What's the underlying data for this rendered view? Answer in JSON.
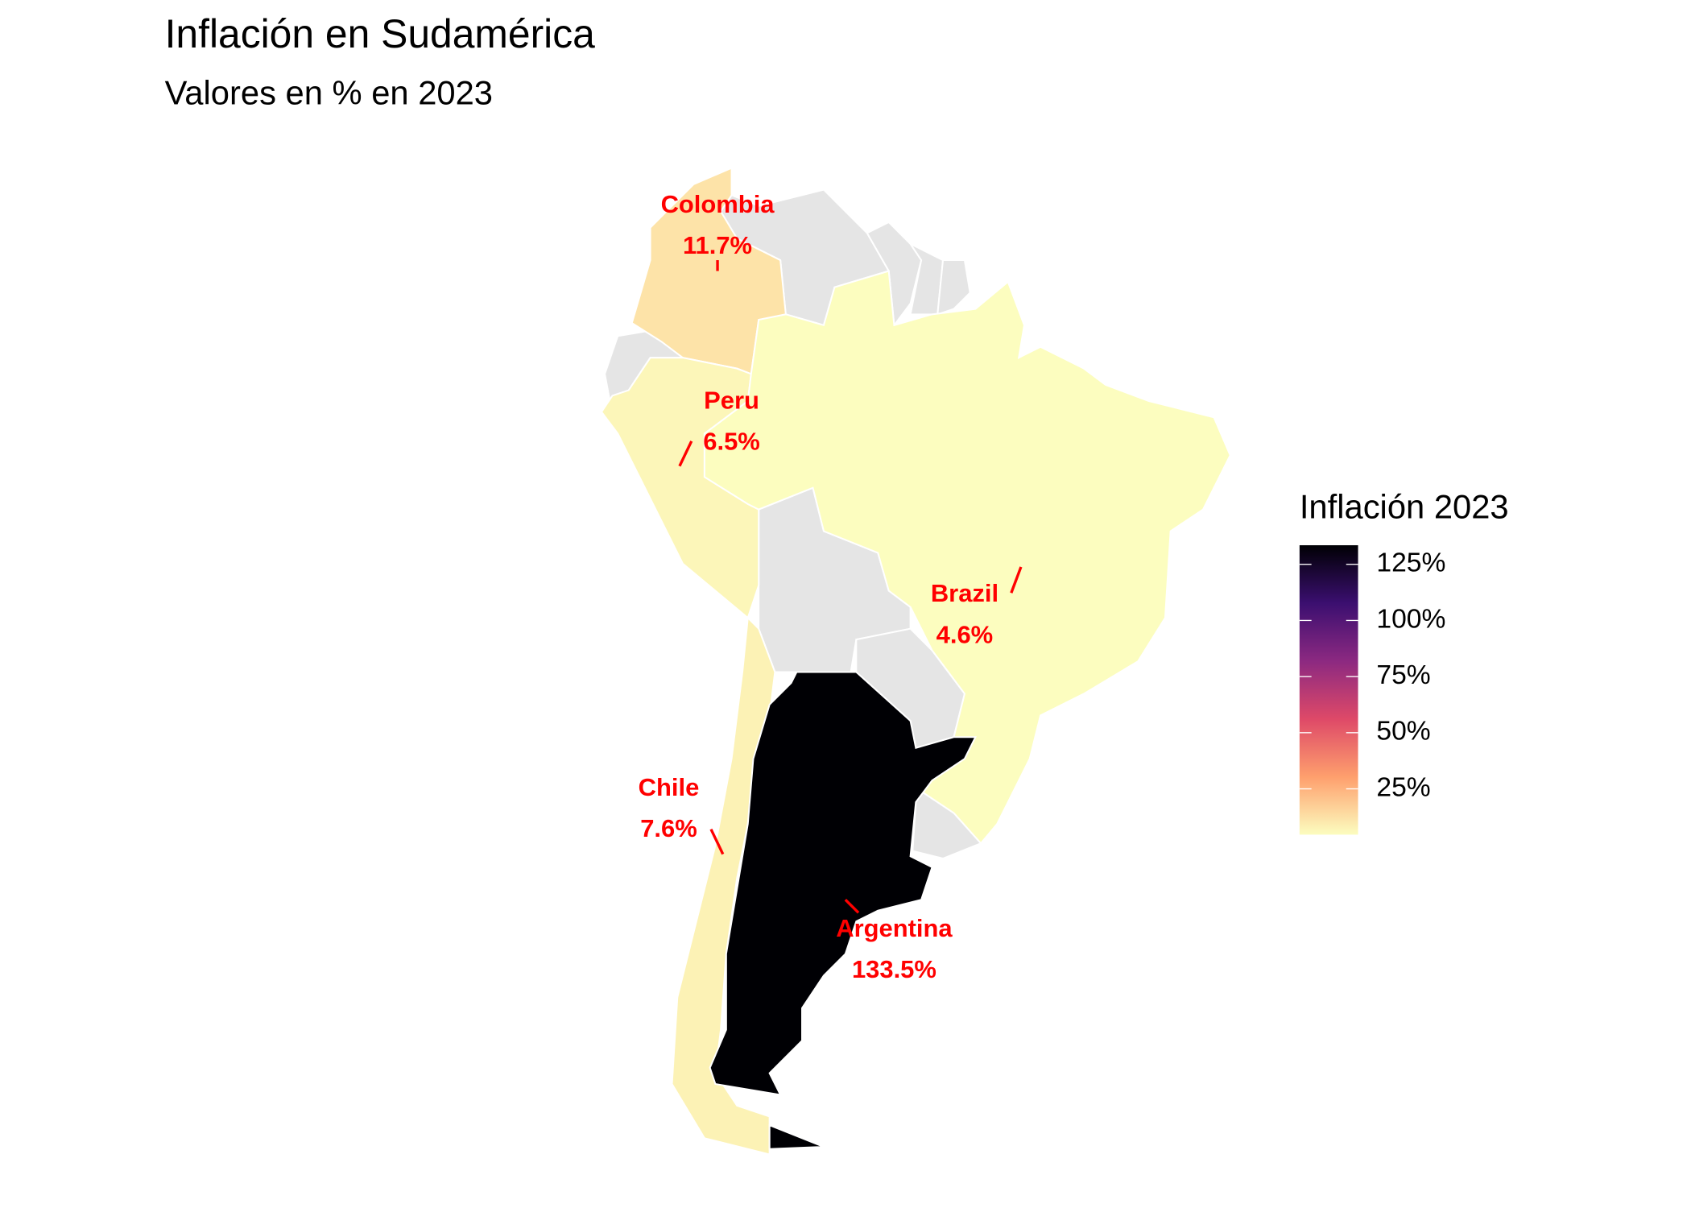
{
  "chart_data": {
    "type": "choropleth",
    "title": "Inflación en Sudamérica",
    "subtitle": "Valores en % en 2023",
    "categories": [
      "Colombia",
      "Peru",
      "Brazil",
      "Chile",
      "Argentina"
    ],
    "values": [
      11.7,
      6.5,
      4.6,
      7.6,
      133.5
    ],
    "value_labels": [
      "11.7%",
      "6.5%",
      "4.6%",
      "7.6%",
      "133.5%"
    ],
    "label_color": "#ff0000",
    "no_data_color": "#e5e5e5",
    "colorbar": {
      "title": "Inflación 2023",
      "lim": [
        4.6,
        133.5
      ],
      "ticks": [
        {
          "value": 25,
          "label": "25%"
        },
        {
          "value": 50,
          "label": "50%"
        },
        {
          "value": 75,
          "label": "75%"
        },
        {
          "value": 100,
          "label": "100%"
        },
        {
          "value": 125,
          "label": "125%"
        }
      ],
      "colors": [
        "#fcfdbf",
        "#fe9f6d",
        "#de4968",
        "#8c2981",
        "#3b0f70",
        "#000004"
      ]
    }
  }
}
